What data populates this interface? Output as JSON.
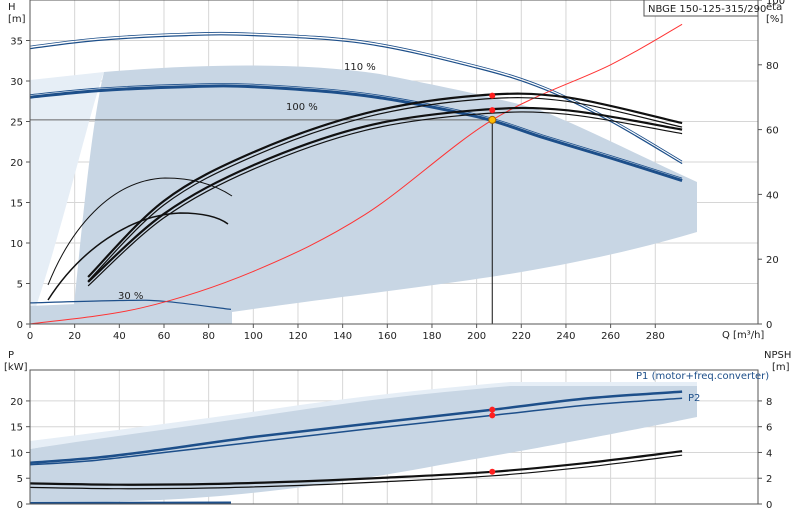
{
  "model": "NBGE 150-125-315/290",
  "colors": {
    "band": "#c8d6e4",
    "band_light": "#e6eef6",
    "curve": "#1d4f8a",
    "grid": "#d6d6d6",
    "system": "#ff3333",
    "dot": "#ff2020",
    "duty": "#ffbb00"
  },
  "top": {
    "ylabel_left": "H",
    "yunit_left": "[m]",
    "ylabel_right": "eta",
    "yunit_right": "[%]",
    "xlabel": "Q [m³/h]",
    "x_ticks": [
      "0",
      "20",
      "40",
      "60",
      "80",
      "100",
      "120",
      "140",
      "160",
      "180",
      "200",
      "220",
      "240",
      "260",
      "280"
    ],
    "y_ticks_left": [
      "0",
      "5",
      "10",
      "15",
      "20",
      "25",
      "30",
      "35"
    ],
    "y_ticks_right": [
      "0",
      "20",
      "40",
      "60",
      "80",
      "100"
    ],
    "curve_labels": [
      "110 %",
      "100 %",
      "30 %"
    ]
  },
  "bottom": {
    "ylabel_left": "P",
    "yunit_left": "[kW]",
    "ylabel_right": "NPSH",
    "yunit_right": "[m]",
    "y_ticks_left": [
      "0",
      "5",
      "10",
      "15",
      "20"
    ],
    "y_ticks_right": [
      "0",
      "2",
      "4",
      "6",
      "8"
    ],
    "series_labels": [
      "P1 (motor+freq.converter)",
      "P2"
    ]
  },
  "chart_data": [
    {
      "type": "line",
      "title": "NBGE 150-125-315/290",
      "xlabel": "Q [m³/h]",
      "ylabel": "H [m]",
      "y2label": "eta [%]",
      "xlim": [
        0,
        326
      ],
      "ylim": [
        0,
        40
      ],
      "y2lim": [
        0,
        100
      ],
      "grid": true,
      "duty_point": {
        "Q": 207,
        "H": 25.2
      },
      "series": [
        {
          "name": "110 %",
          "x": [
            0,
            30,
            70,
            100,
            150,
            200,
            230,
            260,
            292
          ],
          "y": [
            34,
            35,
            35.6,
            35.6,
            34.6,
            31.6,
            29,
            25,
            19.8
          ]
        },
        {
          "name": "100 %",
          "x": [
            0,
            30,
            70,
            100,
            150,
            200,
            230,
            260,
            292
          ],
          "y": [
            28,
            28.8,
            29.3,
            29.3,
            28.2,
            25.6,
            23,
            20.5,
            17.7
          ]
        },
        {
          "name": "30 %",
          "x": [
            0,
            40,
            60,
            90
          ],
          "y": [
            2.6,
            2.9,
            2.8,
            1.8
          ]
        },
        {
          "x": [
            0,
            50,
            100,
            150,
            207,
            260,
            292
          ],
          "y": [
            0,
            2,
            6.5,
            13.5,
            25.2,
            32,
            37
          ]
        },
        {
          "x": [
            26,
            60,
            100,
            150,
            200,
            240,
            292
          ],
          "y": [
            14.5,
            38,
            53,
            65,
            70.5,
            70,
            62
          ]
        },
        {
          "x": [
            26,
            60,
            100,
            150,
            200,
            240,
            292
          ],
          "y": [
            13,
            34,
            49,
            61,
            66,
            66,
            60
          ]
        }
      ]
    },
    {
      "type": "line",
      "xlabel": "Q [m³/h]",
      "ylabel": "P [kW]",
      "y2label": "NPSH [m]",
      "xlim": [
        0,
        326
      ],
      "ylim": [
        0,
        26
      ],
      "y2lim": [
        0,
        10.4
      ],
      "grid": true,
      "series": [
        {
          "name": "P1 (motor+freq.converter)",
          "x": [
            0,
            30,
            60,
            100,
            150,
            207,
            250,
            292
          ],
          "y": [
            8,
            9,
            10.6,
            13,
            15.5,
            18.3,
            20.5,
            21.8
          ]
        },
        {
          "name": "P2",
          "x": [
            0,
            30,
            60,
            100,
            150,
            207,
            250,
            292
          ],
          "y": [
            7.6,
            8.5,
            10,
            12,
            14.5,
            17.2,
            19.2,
            20.5
          ]
        },
        {
          "name": "NPSH",
          "x": [
            0,
            40,
            80,
            120,
            160,
            207,
            250,
            292
          ],
          "y": [
            1.6,
            1.5,
            1.55,
            1.75,
            2.05,
            2.5,
            3.2,
            4.1
          ]
        }
      ]
    }
  ]
}
